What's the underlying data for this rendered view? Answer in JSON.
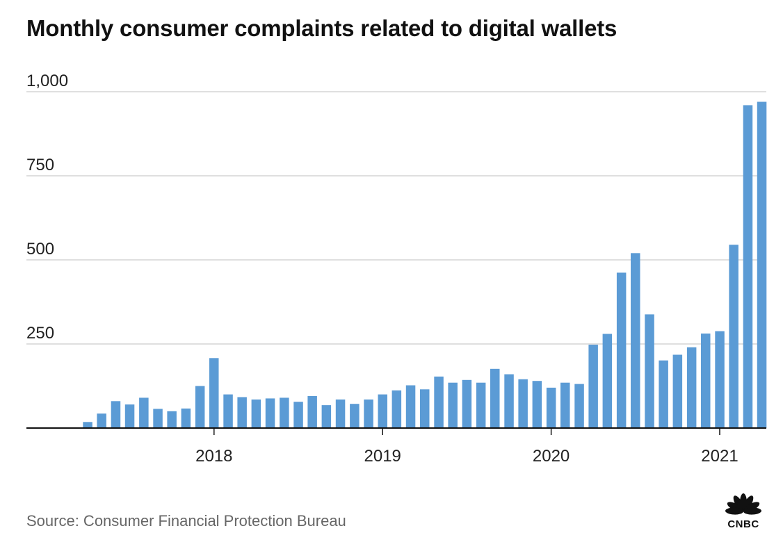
{
  "title": "Monthly consumer complaints related to digital wallets",
  "source": "Source: Consumer Financial Protection Bureau",
  "logo": {
    "icon": "cnbc-peacock-icon",
    "text": "CNBC"
  },
  "colors": {
    "bar": "#5b9bd5",
    "grid": "#cccccc",
    "axis": "#111111",
    "text": "#222222",
    "source": "#666666"
  },
  "chart_data": {
    "type": "bar",
    "title": "Monthly consumer complaints related to digital wallets",
    "xlabel": "",
    "ylabel": "",
    "ylim": [
      0,
      1000
    ],
    "yticks": [
      250,
      500,
      750,
      1000
    ],
    "ytick_labels": [
      "250",
      "500",
      "750",
      "1,000"
    ],
    "xtick_labels": [
      {
        "label": "2018",
        "at": "2018-01"
      },
      {
        "label": "2019",
        "at": "2019-01"
      },
      {
        "label": "2020",
        "at": "2020-01"
      },
      {
        "label": "2021",
        "at": "2021-01"
      }
    ],
    "grid": true,
    "x": [
      "2017-04",
      "2017-05",
      "2017-06",
      "2017-07",
      "2017-08",
      "2017-09",
      "2017-10",
      "2017-11",
      "2017-12",
      "2018-01",
      "2018-02",
      "2018-03",
      "2018-04",
      "2018-05",
      "2018-06",
      "2018-07",
      "2018-08",
      "2018-09",
      "2018-10",
      "2018-11",
      "2018-12",
      "2019-01",
      "2019-02",
      "2019-03",
      "2019-04",
      "2019-05",
      "2019-06",
      "2019-07",
      "2019-08",
      "2019-09",
      "2019-10",
      "2019-11",
      "2019-12",
      "2020-01",
      "2020-02",
      "2020-03",
      "2020-04",
      "2020-05",
      "2020-06",
      "2020-07",
      "2020-08",
      "2020-09",
      "2020-10",
      "2020-11",
      "2020-12",
      "2021-01",
      "2021-02",
      "2021-03",
      "2021-04"
    ],
    "values": [
      18,
      43,
      80,
      70,
      90,
      57,
      50,
      58,
      125,
      208,
      100,
      92,
      85,
      88,
      90,
      78,
      95,
      68,
      85,
      72,
      85,
      100,
      112,
      127,
      115,
      153,
      135,
      143,
      135,
      176,
      160,
      145,
      140,
      120,
      135,
      131,
      248,
      280,
      462,
      520,
      338,
      201,
      218,
      240,
      281,
      288,
      545,
      960,
      970
    ]
  }
}
